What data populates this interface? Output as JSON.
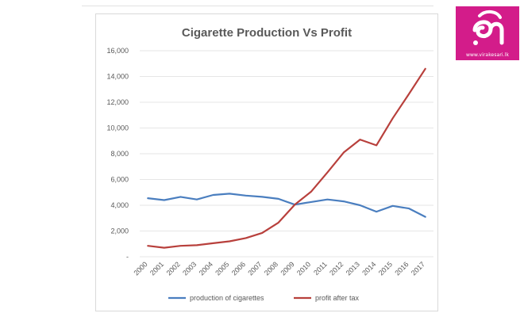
{
  "colors": {
    "production": "#4a7ebf",
    "profit": "#b8403c",
    "grid": "#e6e6e6",
    "text": "#595959",
    "logo_bg": "#d31c8a"
  },
  "logo": {
    "url_text": "www.virakesari.lk"
  },
  "chart_data": {
    "type": "line",
    "title": "Cigarette Production Vs Profit",
    "xlabel": "",
    "ylabel": "",
    "ylim": [
      0,
      16000
    ],
    "yticks": [
      "-",
      "2,000",
      "4,000",
      "6,000",
      "8,000",
      "10,000",
      "12,000",
      "14,000",
      "16,000"
    ],
    "grid": true,
    "legend_position": "bottom",
    "categories": [
      "2000",
      "2001",
      "2002",
      "2003",
      "2004",
      "2005",
      "2006",
      "2007",
      "2008",
      "2009",
      "2010",
      "2011",
      "2012",
      "2013",
      "2014",
      "2015",
      "2016",
      "2017"
    ],
    "series": [
      {
        "name": "production of cigarettes",
        "color": "#4a7ebf",
        "values": [
          4550,
          4400,
          4650,
          4450,
          4800,
          4900,
          4750,
          4650,
          4500,
          4050,
          4250,
          4450,
          4300,
          4000,
          3500,
          3950,
          3750,
          3100
        ]
      },
      {
        "name": "profit after tax",
        "color": "#b8403c",
        "values": [
          850,
          700,
          850,
          900,
          1050,
          1200,
          1450,
          1850,
          2650,
          4050,
          5050,
          6550,
          8100,
          9100,
          8650,
          10750,
          12650,
          14600
        ]
      }
    ]
  }
}
